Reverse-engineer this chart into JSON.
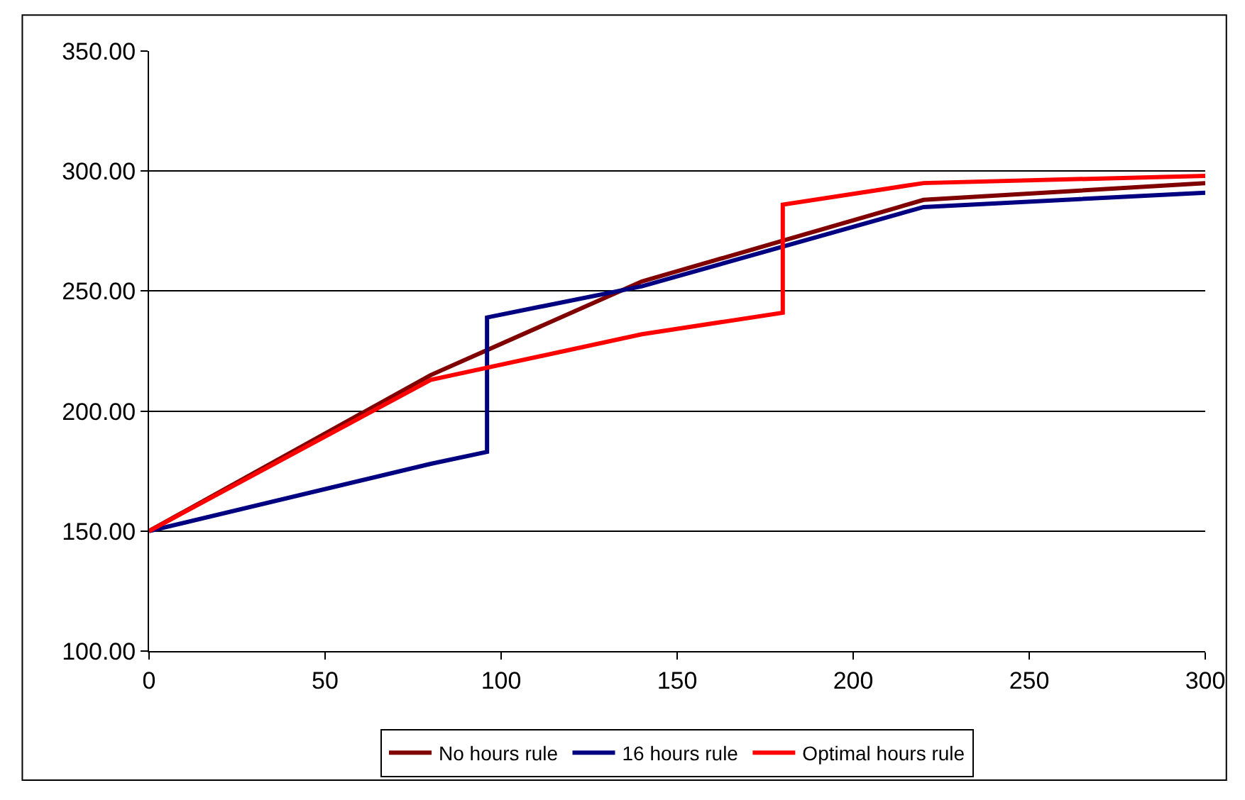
{
  "chart_data": {
    "type": "line",
    "xlim": [
      0,
      300
    ],
    "ylim": [
      100,
      350
    ],
    "xticks": [
      0,
      50,
      100,
      150,
      200,
      250,
      300
    ],
    "yticks": [
      {
        "value": 100,
        "label": "100.00"
      },
      {
        "value": 150,
        "label": "150.00"
      },
      {
        "value": 200,
        "label": "200.00"
      },
      {
        "value": 250,
        "label": "250.00"
      },
      {
        "value": 300,
        "label": "300.00"
      },
      {
        "value": 350,
        "label": "350.00"
      }
    ],
    "grid": "y",
    "legend": "bottom",
    "marker": "none",
    "line_style": "solid",
    "series": [
      {
        "name": "No hours rule",
        "color": "#800000",
        "x": [
          0,
          80,
          140,
          180,
          220,
          300
        ],
        "values": [
          150,
          215,
          254,
          271,
          288,
          295
        ]
      },
      {
        "name": "16 hours rule",
        "color": "#000080",
        "x": [
          0,
          80,
          96,
          96,
          140,
          220,
          300
        ],
        "values": [
          150,
          178,
          183,
          239,
          252,
          285,
          291
        ]
      },
      {
        "name": "Optimal hours rule",
        "color": "#ff0000",
        "x": [
          0,
          80,
          140,
          180,
          180,
          220,
          300
        ],
        "values": [
          150,
          213,
          232,
          241,
          286,
          295,
          298
        ]
      }
    ]
  }
}
